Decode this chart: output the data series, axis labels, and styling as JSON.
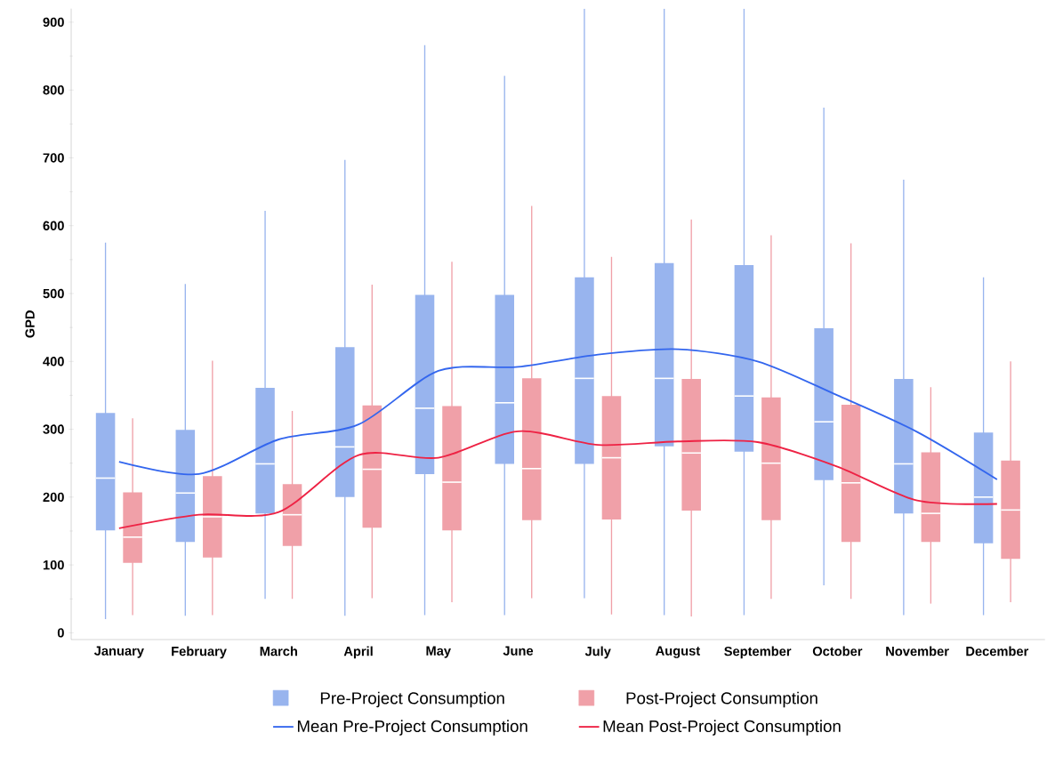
{
  "chart_data": {
    "type": "box",
    "ylabel": "GPD",
    "categories": [
      "January",
      "February",
      "March",
      "April",
      "May",
      "June",
      "July",
      "August",
      "September",
      "October",
      "November",
      "December"
    ],
    "ylim": [
      -10,
      920
    ],
    "yticks": [
      0,
      100,
      200,
      300,
      400,
      500,
      600,
      700,
      800,
      900
    ],
    "legend": "bottom",
    "grid": false,
    "series": [
      {
        "name": "Pre-Project Consumption",
        "color": "#98b4ee",
        "boxes": [
          {
            "low": 20,
            "q1": 151,
            "median": 228,
            "q3": 324,
            "high": 575
          },
          {
            "low": 25,
            "q1": 134,
            "median": 206,
            "q3": 299,
            "high": 514
          },
          {
            "low": 50,
            "q1": 176,
            "median": 249,
            "q3": 361,
            "high": 622
          },
          {
            "low": 25,
            "q1": 200,
            "median": 274,
            "q3": 421,
            "high": 697
          },
          {
            "low": 26,
            "q1": 234,
            "median": 331,
            "q3": 498,
            "high": 866
          },
          {
            "low": 26,
            "q1": 249,
            "median": 339,
            "q3": 498,
            "high": 821
          },
          {
            "low": 51,
            "q1": 249,
            "median": 375,
            "q3": 524,
            "high": 920
          },
          {
            "low": 26,
            "q1": 275,
            "median": 375,
            "q3": 545,
            "high": 920
          },
          {
            "low": 26,
            "q1": 267,
            "median": 349,
            "q3": 542,
            "high": 920
          },
          {
            "low": 70,
            "q1": 225,
            "median": 311,
            "q3": 449,
            "high": 774
          },
          {
            "low": 26,
            "q1": 176,
            "median": 249,
            "q3": 374,
            "high": 668
          },
          {
            "low": 26,
            "q1": 132,
            "median": 200,
            "q3": 295,
            "high": 524
          }
        ]
      },
      {
        "name": "Post-Project Consumption",
        "color": "#f0a0a8",
        "boxes": [
          {
            "low": 26,
            "q1": 103,
            "median": 141,
            "q3": 207,
            "high": 316
          },
          {
            "low": 26,
            "q1": 111,
            "median": 171,
            "q3": 231,
            "high": 401
          },
          {
            "low": 50,
            "q1": 128,
            "median": 174,
            "q3": 219,
            "high": 327
          },
          {
            "low": 51,
            "q1": 155,
            "median": 241,
            "q3": 335,
            "high": 513
          },
          {
            "low": 45,
            "q1": 151,
            "median": 222,
            "q3": 334,
            "high": 547
          },
          {
            "low": 51,
            "q1": 166,
            "median": 242,
            "q3": 375,
            "high": 629
          },
          {
            "low": 27,
            "q1": 167,
            "median": 258,
            "q3": 349,
            "high": 554
          },
          {
            "low": 24,
            "q1": 180,
            "median": 265,
            "q3": 374,
            "high": 609
          },
          {
            "low": 50,
            "q1": 166,
            "median": 250,
            "q3": 347,
            "high": 586
          },
          {
            "low": 50,
            "q1": 134,
            "median": 221,
            "q3": 336,
            "high": 574
          },
          {
            "low": 43,
            "q1": 134,
            "median": 176,
            "q3": 266,
            "high": 362
          },
          {
            "low": 45,
            "q1": 109,
            "median": 181,
            "q3": 254,
            "high": 400
          }
        ]
      },
      {
        "name": "Mean Pre-Project Consumption",
        "type": "line",
        "color": "#3366ee",
        "values": [
          252,
          234,
          285,
          307,
          386,
          392,
          410,
          418,
          400,
          350,
          296,
          226
        ]
      },
      {
        "name": "Mean Post-Project Consumption",
        "type": "line",
        "color": "#ee2244",
        "values": [
          154,
          174,
          178,
          262,
          258,
          297,
          277,
          282,
          281,
          245,
          195,
          190
        ]
      }
    ]
  }
}
